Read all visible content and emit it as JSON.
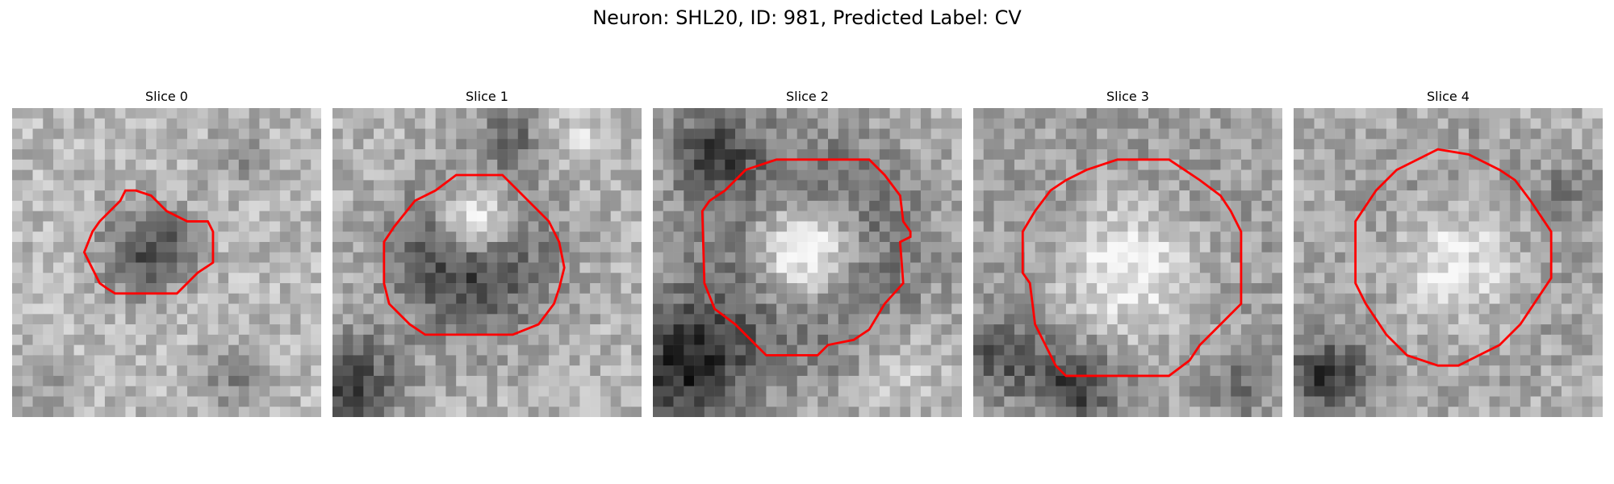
{
  "figure": {
    "title": "Neuron: SHL20, ID: 981, Predicted Label: CV"
  },
  "panels": [
    {
      "title": "Slice 0",
      "contour_color": "#ff0000"
    },
    {
      "title": "Slice 1",
      "contour_color": "#ff0000"
    },
    {
      "title": "Slice 2",
      "contour_color": "#ff0000"
    },
    {
      "title": "Slice 3",
      "contour_color": "#ff0000"
    },
    {
      "title": "Slice 4",
      "contour_color": "#ff0000"
    }
  ],
  "colormap": "gray"
}
